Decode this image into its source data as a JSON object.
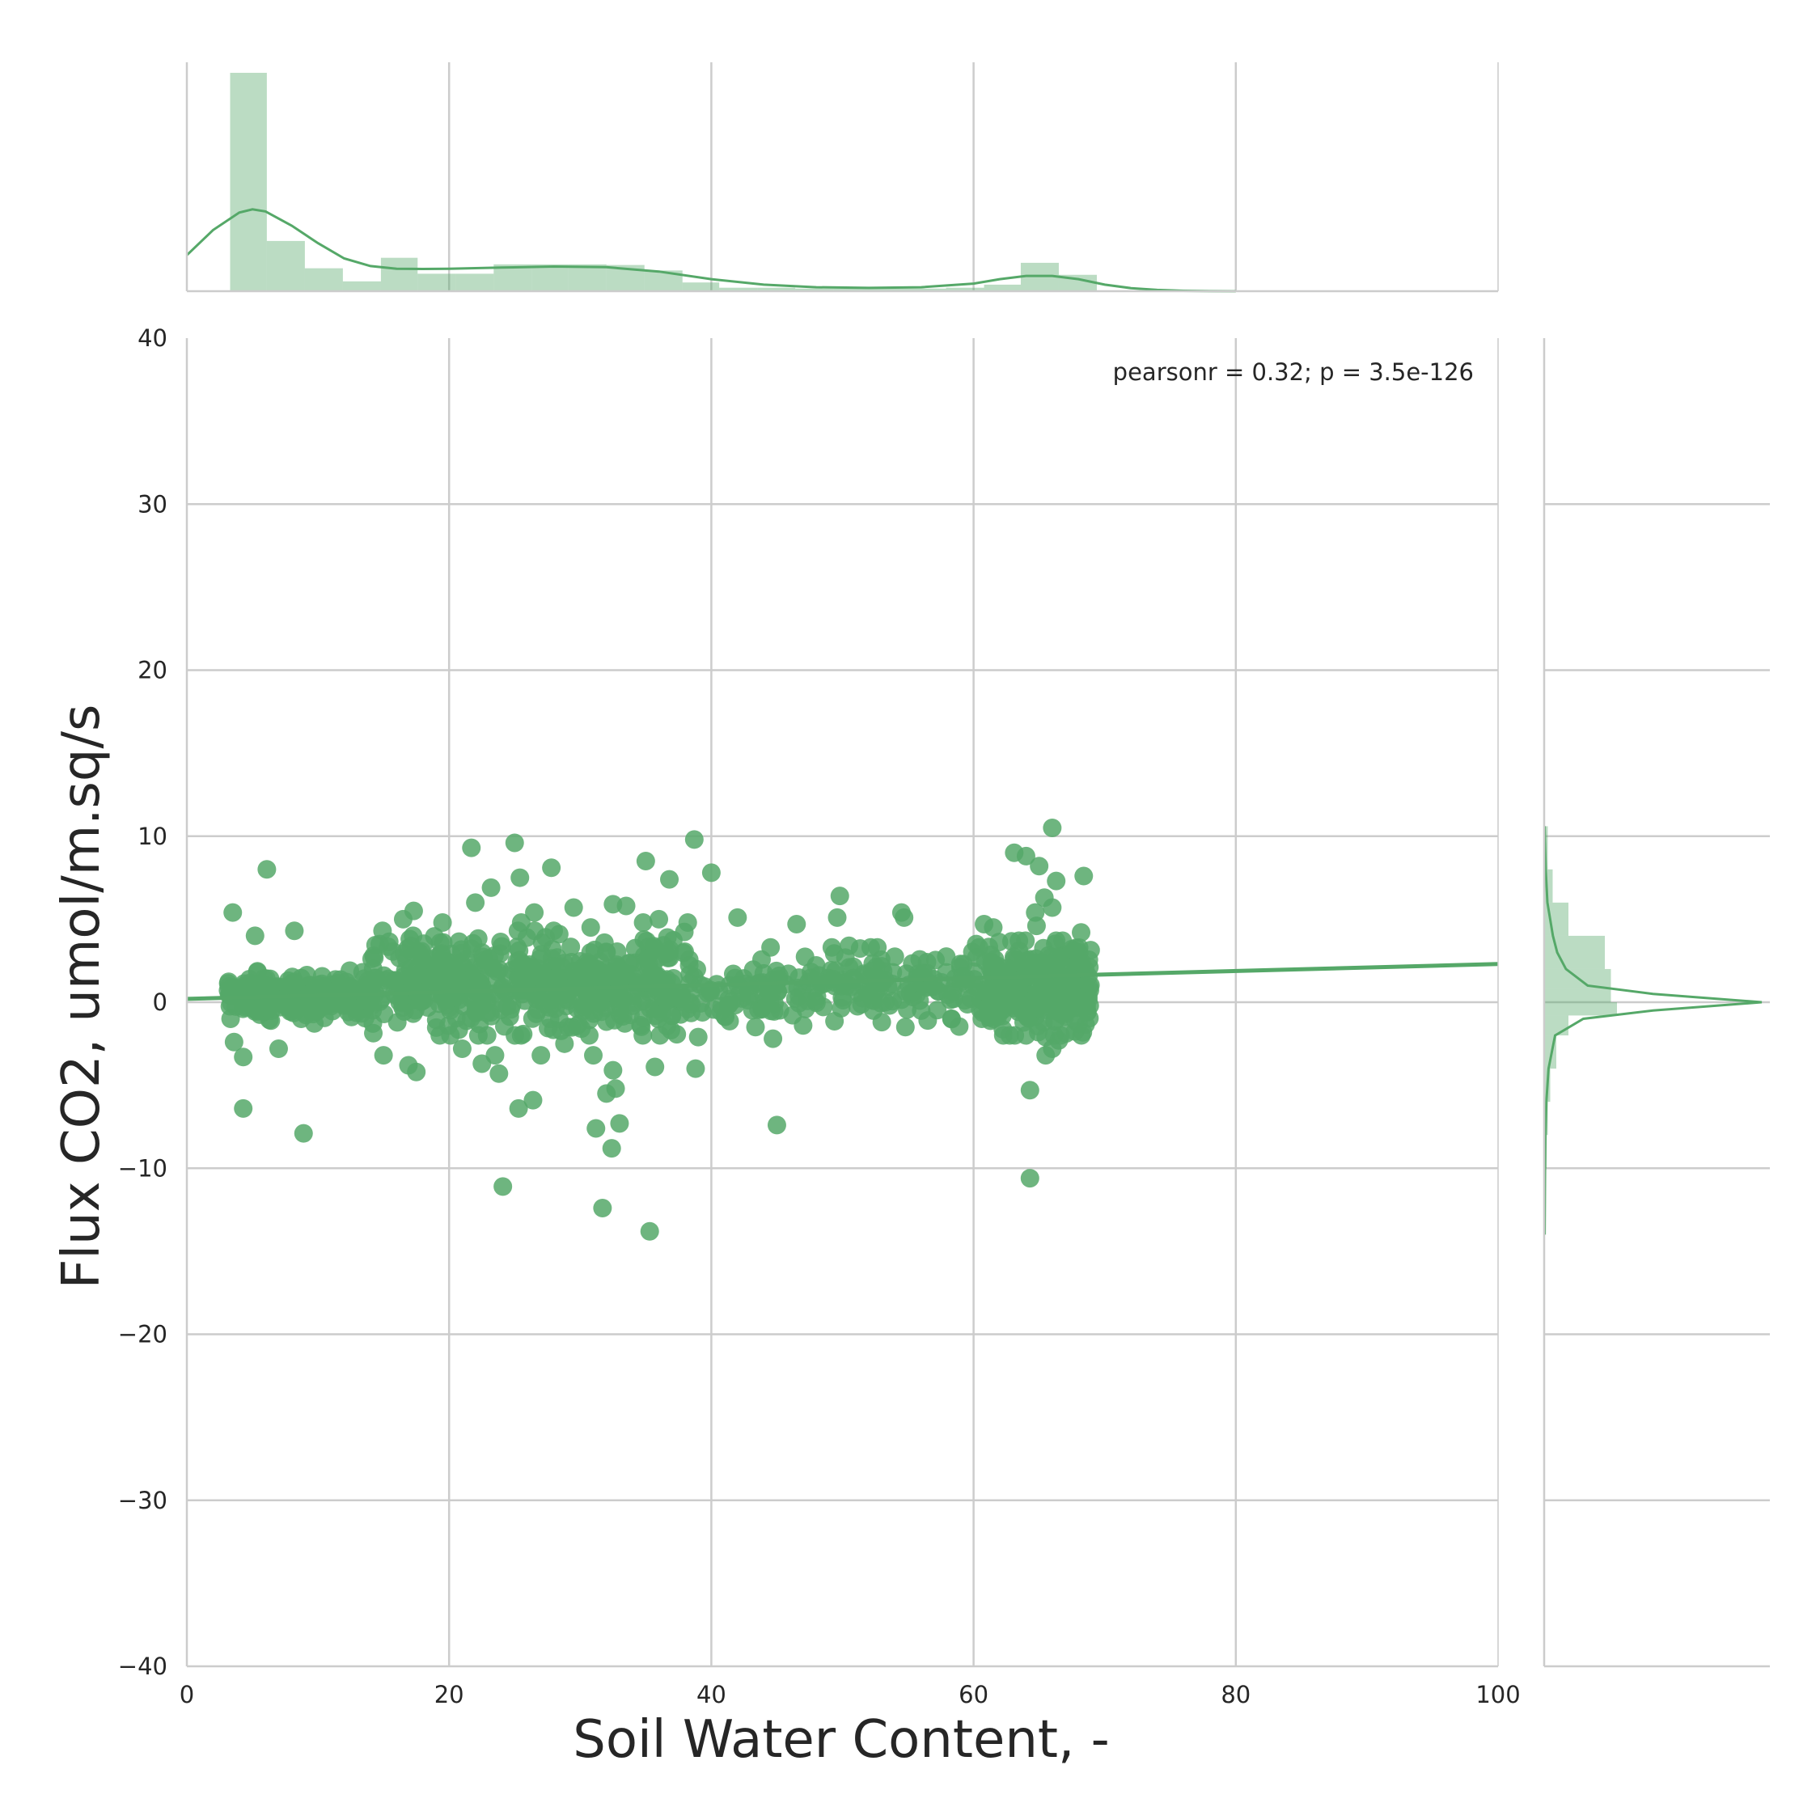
{
  "chart_data": {
    "type": "scatter",
    "plot": "joint plot with marginal histograms and KDE",
    "xlabel": "Soil Water Content, -",
    "ylabel": "Flux CO2, umol/m.sq/s",
    "xlim": [
      0,
      100
    ],
    "ylim": [
      -40,
      40
    ],
    "xticks": [
      0,
      20,
      40,
      60,
      80,
      100
    ],
    "yticks": [
      -40,
      -30,
      -20,
      -10,
      0,
      10,
      20,
      30,
      40
    ],
    "grid": true,
    "color": "#55a868",
    "annotation": "pearsonr = 0.32; p = 3.5e-126",
    "regression_line": {
      "x": [
        0,
        100
      ],
      "y": [
        0.2,
        2.3
      ]
    },
    "scatter_bulk_ranges": [
      {
        "x_range": [
          3,
          14
        ],
        "y_range": [
          -1.0,
          1.6
        ],
        "n": 220
      },
      {
        "x_range": [
          14,
          38
        ],
        "y_range": [
          -1.5,
          3.8
        ],
        "n": 520
      },
      {
        "x_range": [
          38,
          62
        ],
        "y_range": [
          -1.0,
          2.8
        ],
        "n": 240
      },
      {
        "x_range": [
          61,
          69
        ],
        "y_range": [
          -1.5,
          3.2
        ],
        "n": 300
      }
    ],
    "scatter_outliers": [
      [
        3.5,
        5.4
      ],
      [
        5.2,
        4.0
      ],
      [
        6.1,
        8.0
      ],
      [
        8.2,
        4.3
      ],
      [
        4.3,
        -6.4
      ],
      [
        8.9,
        -7.9
      ],
      [
        4.3,
        -3.3
      ],
      [
        3.6,
        -2.4
      ],
      [
        7.0,
        -2.8
      ],
      [
        13.4,
        1.8
      ],
      [
        15.0,
        -3.2
      ],
      [
        16.5,
        5.0
      ],
      [
        17.3,
        5.5
      ],
      [
        17.5,
        -4.2
      ],
      [
        16.9,
        -3.8
      ],
      [
        17.0,
        3.8
      ],
      [
        19.5,
        4.8
      ],
      [
        20.1,
        -2.0
      ],
      [
        21.0,
        -2.8
      ],
      [
        21.7,
        9.3
      ],
      [
        22.0,
        6.0
      ],
      [
        22.5,
        -3.7
      ],
      [
        23.2,
        6.9
      ],
      [
        23.5,
        -3.2
      ],
      [
        23.8,
        -4.3
      ],
      [
        24.1,
        -11.1
      ],
      [
        25.0,
        9.6
      ],
      [
        25.3,
        -6.4
      ],
      [
        25.5,
        4.8
      ],
      [
        25.4,
        7.5
      ],
      [
        26.5,
        5.4
      ],
      [
        26.4,
        -5.9
      ],
      [
        27.0,
        -3.2
      ],
      [
        27.8,
        8.1
      ],
      [
        28.4,
        4.1
      ],
      [
        28.8,
        -2.5
      ],
      [
        29.5,
        5.7
      ],
      [
        30.8,
        4.5
      ],
      [
        31.0,
        -3.2
      ],
      [
        31.2,
        -7.6
      ],
      [
        31.7,
        -12.4
      ],
      [
        32.0,
        -5.5
      ],
      [
        32.4,
        -8.8
      ],
      [
        32.7,
        -5.2
      ],
      [
        32.5,
        -4.1
      ],
      [
        32.5,
        5.9
      ],
      [
        33.0,
        -7.3
      ],
      [
        33.5,
        5.8
      ],
      [
        34.8,
        4.8
      ],
      [
        35.0,
        8.5
      ],
      [
        35.3,
        -13.8
      ],
      [
        35.7,
        -3.9
      ],
      [
        36.0,
        5.0
      ],
      [
        36.8,
        7.4
      ],
      [
        38.2,
        4.8
      ],
      [
        38.7,
        9.8
      ],
      [
        38.8,
        -4.0
      ],
      [
        39.0,
        -2.1
      ],
      [
        40.0,
        7.8
      ],
      [
        42.0,
        5.1
      ],
      [
        44.7,
        -2.2
      ],
      [
        45.0,
        -7.4
      ],
      [
        46.5,
        4.7
      ],
      [
        47.0,
        -1.4
      ],
      [
        49.6,
        5.1
      ],
      [
        49.8,
        6.4
      ],
      [
        50.5,
        3.4
      ],
      [
        53.0,
        -1.2
      ],
      [
        54.5,
        5.4
      ],
      [
        54.7,
        5.1
      ],
      [
        54.8,
        -1.5
      ],
      [
        56.5,
        -1.1
      ],
      [
        60.2,
        3.5
      ],
      [
        60.8,
        4.7
      ],
      [
        61.5,
        4.5
      ],
      [
        63.1,
        9.0
      ],
      [
        64.0,
        8.8
      ],
      [
        64.3,
        -5.3
      ],
      [
        64.3,
        -10.6
      ],
      [
        64.7,
        5.4
      ],
      [
        65.0,
        8.2
      ],
      [
        65.4,
        6.3
      ],
      [
        65.5,
        -3.2
      ],
      [
        65.5,
        -2.1
      ],
      [
        66.0,
        10.5
      ],
      [
        66.3,
        7.3
      ],
      [
        66.0,
        5.7
      ],
      [
        64.8,
        4.6
      ],
      [
        66.5,
        -2.3
      ],
      [
        66.0,
        -2.8
      ],
      [
        67.5,
        3.2
      ],
      [
        68.2,
        4.2
      ],
      [
        68.4,
        7.6
      ],
      [
        68.0,
        -1.3
      ]
    ],
    "top_histogram": {
      "bin_edges": [
        3.3,
        6.1,
        9.0,
        11.9,
        14.8,
        17.6,
        20.5,
        23.4,
        26.3,
        29.1,
        32.0,
        34.9,
        37.8,
        40.6,
        43.5,
        46.4,
        49.3,
        52.1,
        55.0,
        57.9,
        60.8,
        63.6,
        66.5,
        69.4
      ],
      "heights": [
        1.0,
        0.23,
        0.105,
        0.045,
        0.153,
        0.08,
        0.08,
        0.123,
        0.123,
        0.123,
        0.12,
        0.095,
        0.04,
        0.016,
        0.016,
        0.012,
        0.012,
        0.012,
        0.012,
        0.016,
        0.03,
        0.13,
        0.075
      ],
      "kde": {
        "x": [
          0,
          2,
          4,
          5,
          6,
          8,
          10,
          12,
          14,
          16,
          18,
          20,
          24,
          28,
          32,
          36,
          40,
          44,
          48,
          52,
          56,
          60,
          62,
          64,
          66,
          68,
          70,
          72,
          74,
          76,
          78,
          80
        ],
        "y": [
          0.165,
          0.28,
          0.36,
          0.375,
          0.365,
          0.3,
          0.22,
          0.15,
          0.115,
          0.103,
          0.102,
          0.103,
          0.108,
          0.113,
          0.11,
          0.09,
          0.055,
          0.03,
          0.018,
          0.015,
          0.018,
          0.035,
          0.055,
          0.07,
          0.07,
          0.055,
          0.03,
          0.014,
          0.006,
          0.002,
          0.0005,
          0.0
        ]
      }
    },
    "right_histogram": {
      "bin_edges": [
        -14.0,
        -12.0,
        -10.0,
        -8.0,
        -6.0,
        -4.0,
        -2.0,
        -0.8,
        0.0,
        0.8,
        2.0,
        4.0,
        6.0,
        8.0,
        10.6
      ],
      "heights": [
        0.003,
        0.003,
        0.004,
        0.006,
        0.01,
        0.02,
        0.04,
        0.12,
        0.11,
        0.11,
        0.1,
        0.04,
        0.014,
        0.006
      ],
      "kde": {
        "y": [
          -14,
          -12,
          -10,
          -8,
          -6,
          -4,
          -2,
          -1,
          -0.5,
          0,
          0.5,
          1,
          2,
          3,
          4,
          6,
          8,
          10,
          10.6
        ],
        "x": [
          0.002,
          0.003,
          0.004,
          0.006,
          0.01,
          0.02,
          0.05,
          0.18,
          0.5,
          1.0,
          0.5,
          0.2,
          0.1,
          0.06,
          0.04,
          0.015,
          0.007,
          0.003,
          0.002
        ]
      }
    }
  }
}
